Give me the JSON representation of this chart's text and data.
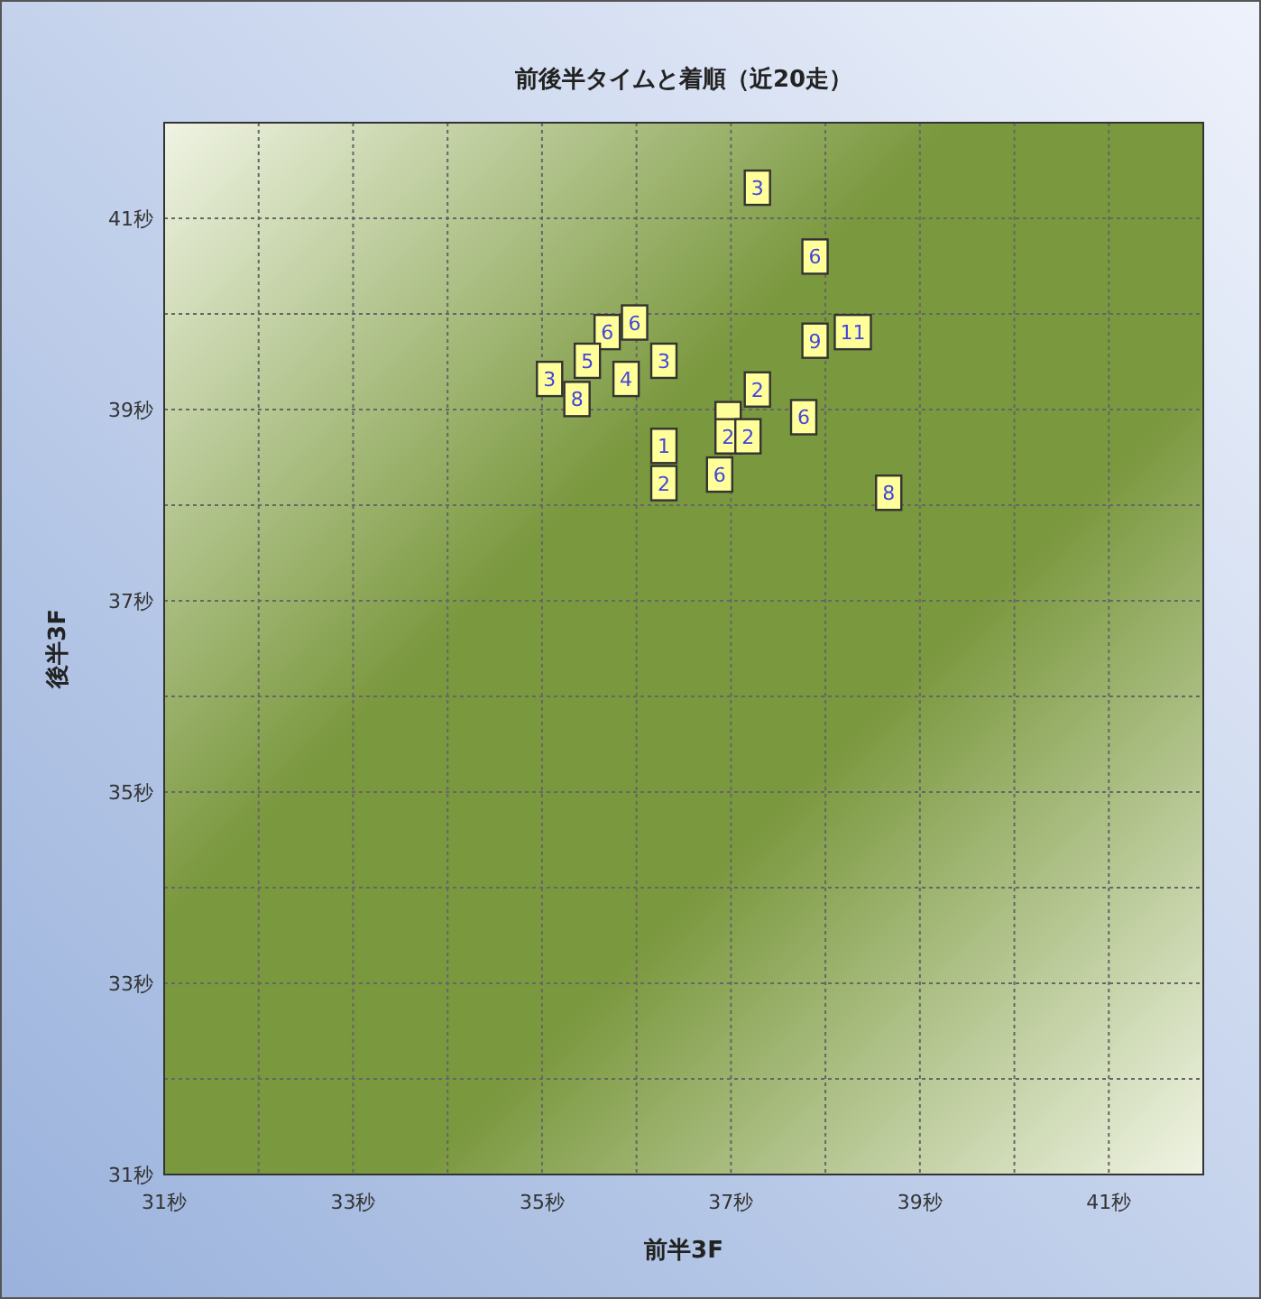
{
  "chart_data": {
    "type": "scatter",
    "title": "前後半タイムと着順（近20走）",
    "xlabel": "前半3F",
    "ylabel": "後半3F",
    "x": [
      37.28,
      37.89,
      38.29,
      37.89,
      35.98,
      35.69,
      35.48,
      36.29,
      35.89,
      35.08,
      35.37,
      37.28,
      37.77,
      36.29,
      36.97,
      36.97,
      37.18,
      36.88,
      36.29,
      38.67
    ],
    "values": [
      41.32,
      40.6,
      39.81,
      39.72,
      39.91,
      39.81,
      39.51,
      39.51,
      39.32,
      39.32,
      39.11,
      39.21,
      38.92,
      38.62,
      38.9,
      38.72,
      38.72,
      38.32,
      38.23,
      38.13
    ],
    "annotations": [
      {
        "text": "3",
        "x": 37.28,
        "y": 41.32
      },
      {
        "text": "6",
        "x": 37.89,
        "y": 40.6
      },
      {
        "text": "11",
        "x": 38.29,
        "y": 39.81
      },
      {
        "text": "9",
        "x": 37.89,
        "y": 39.72
      },
      {
        "text": "6",
        "x": 35.98,
        "y": 39.91
      },
      {
        "text": "6",
        "x": 35.69,
        "y": 39.81
      },
      {
        "text": "5",
        "x": 35.48,
        "y": 39.51
      },
      {
        "text": "3",
        "x": 36.29,
        "y": 39.51
      },
      {
        "text": "4",
        "x": 35.89,
        "y": 39.32
      },
      {
        "text": "3",
        "x": 35.08,
        "y": 39.32
      },
      {
        "text": "8",
        "x": 35.37,
        "y": 39.11
      },
      {
        "text": "2",
        "x": 37.28,
        "y": 39.21
      },
      {
        "text": "6",
        "x": 37.77,
        "y": 38.92
      },
      {
        "text": "1",
        "x": 36.29,
        "y": 38.62
      },
      {
        "text": "2",
        "x": 36.97,
        "y": 38.72
      },
      {
        "text": "2",
        "x": 37.18,
        "y": 38.72
      },
      {
        "text": "6",
        "x": 36.88,
        "y": 38.32
      },
      {
        "text": "2",
        "x": 36.29,
        "y": 38.23
      },
      {
        "text": "8",
        "x": 38.67,
        "y": 38.13
      }
    ],
    "color": "#ffff99",
    "marker": "square",
    "grid": true,
    "xlim": [
      31,
      42
    ],
    "ylim": [
      31,
      42
    ],
    "xticks": [
      {
        "value": 31,
        "label": "31秒"
      },
      {
        "value": 32,
        "label": null
      },
      {
        "value": 33,
        "label": "33秒"
      },
      {
        "value": 34,
        "label": null
      },
      {
        "value": 35,
        "label": "35秒"
      },
      {
        "value": 36,
        "label": null
      },
      {
        "value": 37,
        "label": "37秒"
      },
      {
        "value": 38,
        "label": null
      },
      {
        "value": 39,
        "label": "39秒"
      },
      {
        "value": 40,
        "label": null
      },
      {
        "value": 41,
        "label": "41秒"
      },
      {
        "value": 42,
        "label": null
      }
    ],
    "yticks": [
      {
        "value": 31,
        "label": "31秒"
      },
      {
        "value": 32,
        "label": null
      },
      {
        "value": 33,
        "label": "33秒"
      },
      {
        "value": 34,
        "label": null
      },
      {
        "value": 35,
        "label": "35秒"
      },
      {
        "value": 36,
        "label": null
      },
      {
        "value": 37,
        "label": "37秒"
      },
      {
        "value": 38,
        "label": null
      },
      {
        "value": 39,
        "label": "39秒"
      },
      {
        "value": 40,
        "label": null
      },
      {
        "value": 41,
        "label": "41秒"
      },
      {
        "value": 42,
        "label": null
      }
    ]
  }
}
